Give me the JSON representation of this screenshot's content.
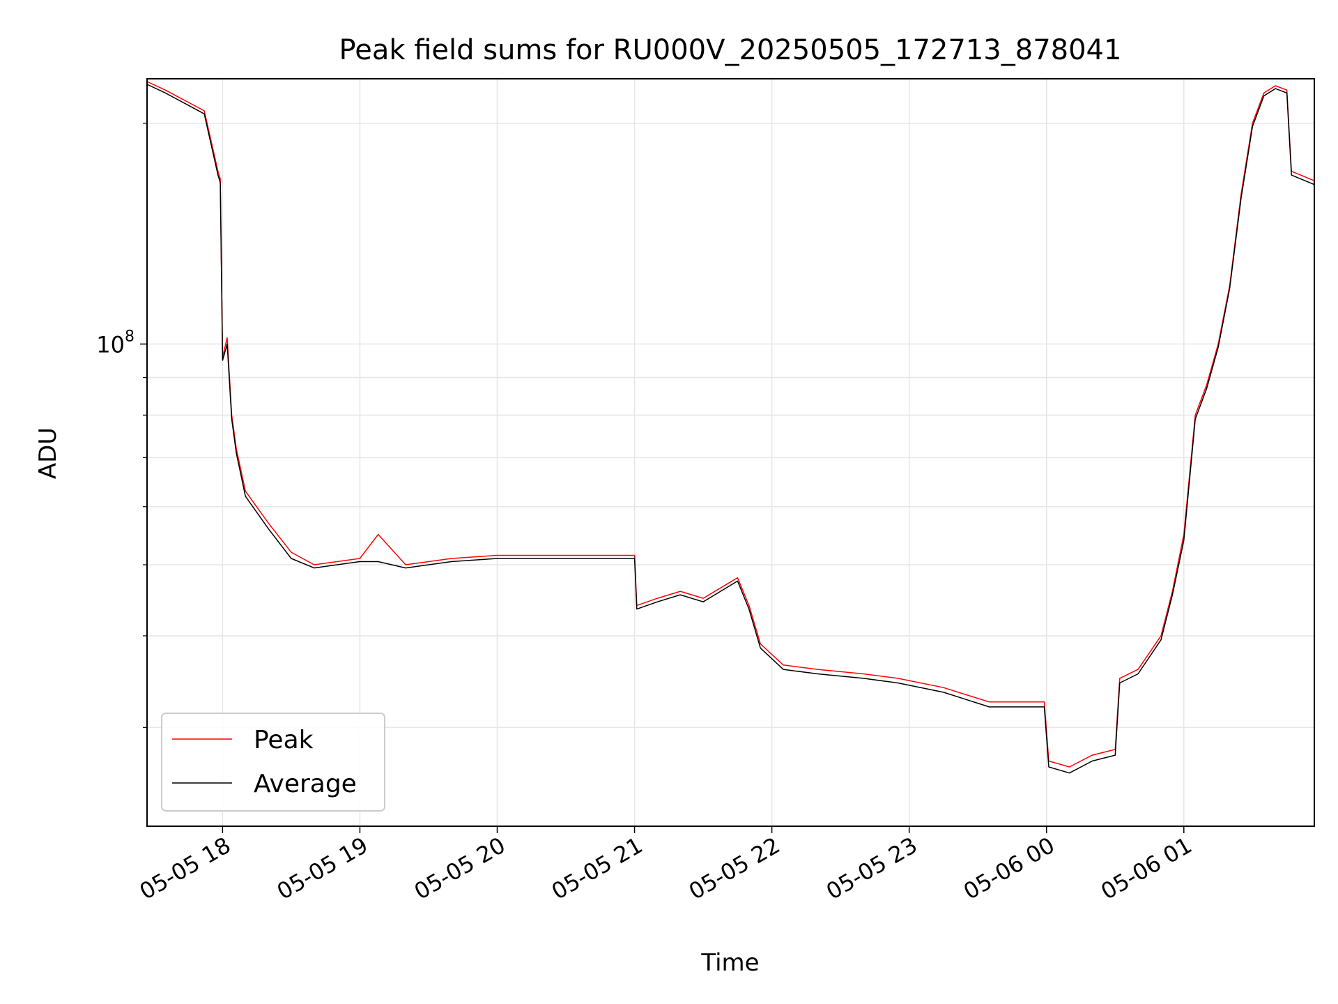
{
  "chart_data": {
    "type": "line",
    "title": "Peak field sums for RU000V_20250505_172713_878041",
    "xlabel": "Time",
    "ylabel": "ADU",
    "x_range": [
      "2025-05-05 17:27",
      "2025-05-06 01:57"
    ],
    "yscale": "log",
    "ylim": [
      22000000,
      230000000
    ],
    "x_ticks": [
      {
        "time": "2025-05-05 18:00",
        "label": "05-05 18"
      },
      {
        "time": "2025-05-05 19:00",
        "label": "05-05 19"
      },
      {
        "time": "2025-05-05 20:00",
        "label": "05-05 20"
      },
      {
        "time": "2025-05-05 21:00",
        "label": "05-05 21"
      },
      {
        "time": "2025-05-05 22:00",
        "label": "05-05 22"
      },
      {
        "time": "2025-05-05 23:00",
        "label": "05-05 23"
      },
      {
        "time": "2025-05-06 00:00",
        "label": "05-06 00"
      },
      {
        "time": "2025-05-06 01:00",
        "label": "05-06 01"
      }
    ],
    "y_major_ticks": [
      {
        "value": 100000000,
        "label": "10^8"
      }
    ],
    "y_minor_ticks": [
      30000000,
      40000000,
      50000000,
      60000000,
      70000000,
      80000000,
      90000000,
      200000000
    ],
    "grid": true,
    "legend_position": "lower-left",
    "series": [
      {
        "name": "Peak",
        "color": "#ff0000",
        "points": [
          [
            "2025-05-05 17:27",
            228000000
          ],
          [
            "2025-05-05 17:35",
            222000000
          ],
          [
            "2025-05-05 17:52",
            208000000
          ],
          [
            "2025-05-05 17:58",
            172000000
          ],
          [
            "2025-05-05 17:59",
            168000000
          ],
          [
            "2025-05-05 18:00",
            96000000
          ],
          [
            "2025-05-05 18:02",
            102000000
          ],
          [
            "2025-05-05 18:04",
            80000000
          ],
          [
            "2025-05-05 18:06",
            72000000
          ],
          [
            "2025-05-05 18:10",
            63000000
          ],
          [
            "2025-05-05 18:20",
            57000000
          ],
          [
            "2025-05-05 18:30",
            52000000
          ],
          [
            "2025-05-05 18:40",
            50000000
          ],
          [
            "2025-05-05 19:00",
            51000000
          ],
          [
            "2025-05-05 19:08",
            55000000
          ],
          [
            "2025-05-05 19:20",
            50000000
          ],
          [
            "2025-05-05 19:40",
            51000000
          ],
          [
            "2025-05-05 20:00",
            51500000
          ],
          [
            "2025-05-05 20:30",
            51500000
          ],
          [
            "2025-05-05 21:00",
            51500000
          ],
          [
            "2025-05-05 21:01",
            44000000
          ],
          [
            "2025-05-05 21:10",
            45000000
          ],
          [
            "2025-05-05 21:20",
            46000000
          ],
          [
            "2025-05-05 21:30",
            45000000
          ],
          [
            "2025-05-05 21:45",
            48000000
          ],
          [
            "2025-05-05 21:50",
            44000000
          ],
          [
            "2025-05-05 21:55",
            39000000
          ],
          [
            "2025-05-05 22:05",
            36500000
          ],
          [
            "2025-05-05 22:20",
            36000000
          ],
          [
            "2025-05-05 22:40",
            35500000
          ],
          [
            "2025-05-05 22:55",
            35000000
          ],
          [
            "2025-05-05 23:15",
            34000000
          ],
          [
            "2025-05-05 23:35",
            32500000
          ],
          [
            "2025-05-05 23:55",
            32500000
          ],
          [
            "2025-05-05 23:59",
            32500000
          ],
          [
            "2025-05-06 00:01",
            27000000
          ],
          [
            "2025-05-06 00:10",
            26500000
          ],
          [
            "2025-05-06 00:20",
            27500000
          ],
          [
            "2025-05-06 00:30",
            28000000
          ],
          [
            "2025-05-06 00:32",
            35000000
          ],
          [
            "2025-05-06 00:40",
            36000000
          ],
          [
            "2025-05-06 00:50",
            40000000
          ],
          [
            "2025-05-06 00:55",
            46000000
          ],
          [
            "2025-05-06 01:00",
            55000000
          ],
          [
            "2025-05-06 01:05",
            80000000
          ],
          [
            "2025-05-06 01:10",
            88000000
          ],
          [
            "2025-05-06 01:15",
            100000000
          ],
          [
            "2025-05-06 01:20",
            120000000
          ],
          [
            "2025-05-06 01:25",
            160000000
          ],
          [
            "2025-05-06 01:30",
            200000000
          ],
          [
            "2025-05-06 01:35",
            220000000
          ],
          [
            "2025-05-06 01:40",
            225000000
          ],
          [
            "2025-05-06 01:45",
            222000000
          ],
          [
            "2025-05-06 01:47",
            172000000
          ],
          [
            "2025-05-06 01:57",
            167000000
          ]
        ]
      },
      {
        "name": "Average",
        "color": "#000000",
        "points": [
          [
            "2025-05-05 17:27",
            226000000
          ],
          [
            "2025-05-05 17:35",
            220000000
          ],
          [
            "2025-05-05 17:52",
            206000000
          ],
          [
            "2025-05-05 17:58",
            170000000
          ],
          [
            "2025-05-05 17:59",
            166000000
          ],
          [
            "2025-05-05 18:00",
            95000000
          ],
          [
            "2025-05-05 18:02",
            100000000
          ],
          [
            "2025-05-05 18:04",
            79000000
          ],
          [
            "2025-05-05 18:06",
            71000000
          ],
          [
            "2025-05-05 18:10",
            62000000
          ],
          [
            "2025-05-05 18:20",
            56000000
          ],
          [
            "2025-05-05 18:30",
            51000000
          ],
          [
            "2025-05-05 18:40",
            49500000
          ],
          [
            "2025-05-05 19:00",
            50500000
          ],
          [
            "2025-05-05 19:08",
            50500000
          ],
          [
            "2025-05-05 19:20",
            49500000
          ],
          [
            "2025-05-05 19:40",
            50500000
          ],
          [
            "2025-05-05 20:00",
            51000000
          ],
          [
            "2025-05-05 20:30",
            51000000
          ],
          [
            "2025-05-05 21:00",
            51000000
          ],
          [
            "2025-05-05 21:01",
            43500000
          ],
          [
            "2025-05-05 21:10",
            44500000
          ],
          [
            "2025-05-05 21:20",
            45500000
          ],
          [
            "2025-05-05 21:30",
            44500000
          ],
          [
            "2025-05-05 21:45",
            47500000
          ],
          [
            "2025-05-05 21:50",
            43500000
          ],
          [
            "2025-05-05 21:55",
            38500000
          ],
          [
            "2025-05-05 22:05",
            36000000
          ],
          [
            "2025-05-05 22:20",
            35500000
          ],
          [
            "2025-05-05 22:40",
            35000000
          ],
          [
            "2025-05-05 22:55",
            34500000
          ],
          [
            "2025-05-05 23:15",
            33500000
          ],
          [
            "2025-05-05 23:35",
            32000000
          ],
          [
            "2025-05-05 23:55",
            32000000
          ],
          [
            "2025-05-05 23:59",
            32000000
          ],
          [
            "2025-05-06 00:01",
            26500000
          ],
          [
            "2025-05-06 00:10",
            26000000
          ],
          [
            "2025-05-06 00:20",
            27000000
          ],
          [
            "2025-05-06 00:30",
            27500000
          ],
          [
            "2025-05-06 00:32",
            34500000
          ],
          [
            "2025-05-06 00:40",
            35500000
          ],
          [
            "2025-05-06 00:50",
            39500000
          ],
          [
            "2025-05-06 00:55",
            45500000
          ],
          [
            "2025-05-06 01:00",
            54000000
          ],
          [
            "2025-05-06 01:05",
            79000000
          ],
          [
            "2025-05-06 01:10",
            87000000
          ],
          [
            "2025-05-06 01:15",
            99000000
          ],
          [
            "2025-05-06 01:20",
            119000000
          ],
          [
            "2025-05-06 01:25",
            158000000
          ],
          [
            "2025-05-06 01:30",
            198000000
          ],
          [
            "2025-05-06 01:35",
            218000000
          ],
          [
            "2025-05-06 01:40",
            223000000
          ],
          [
            "2025-05-06 01:45",
            220000000
          ],
          [
            "2025-05-06 01:47",
            170000000
          ],
          [
            "2025-05-06 01:57",
            165000000
          ]
        ]
      }
    ]
  }
}
